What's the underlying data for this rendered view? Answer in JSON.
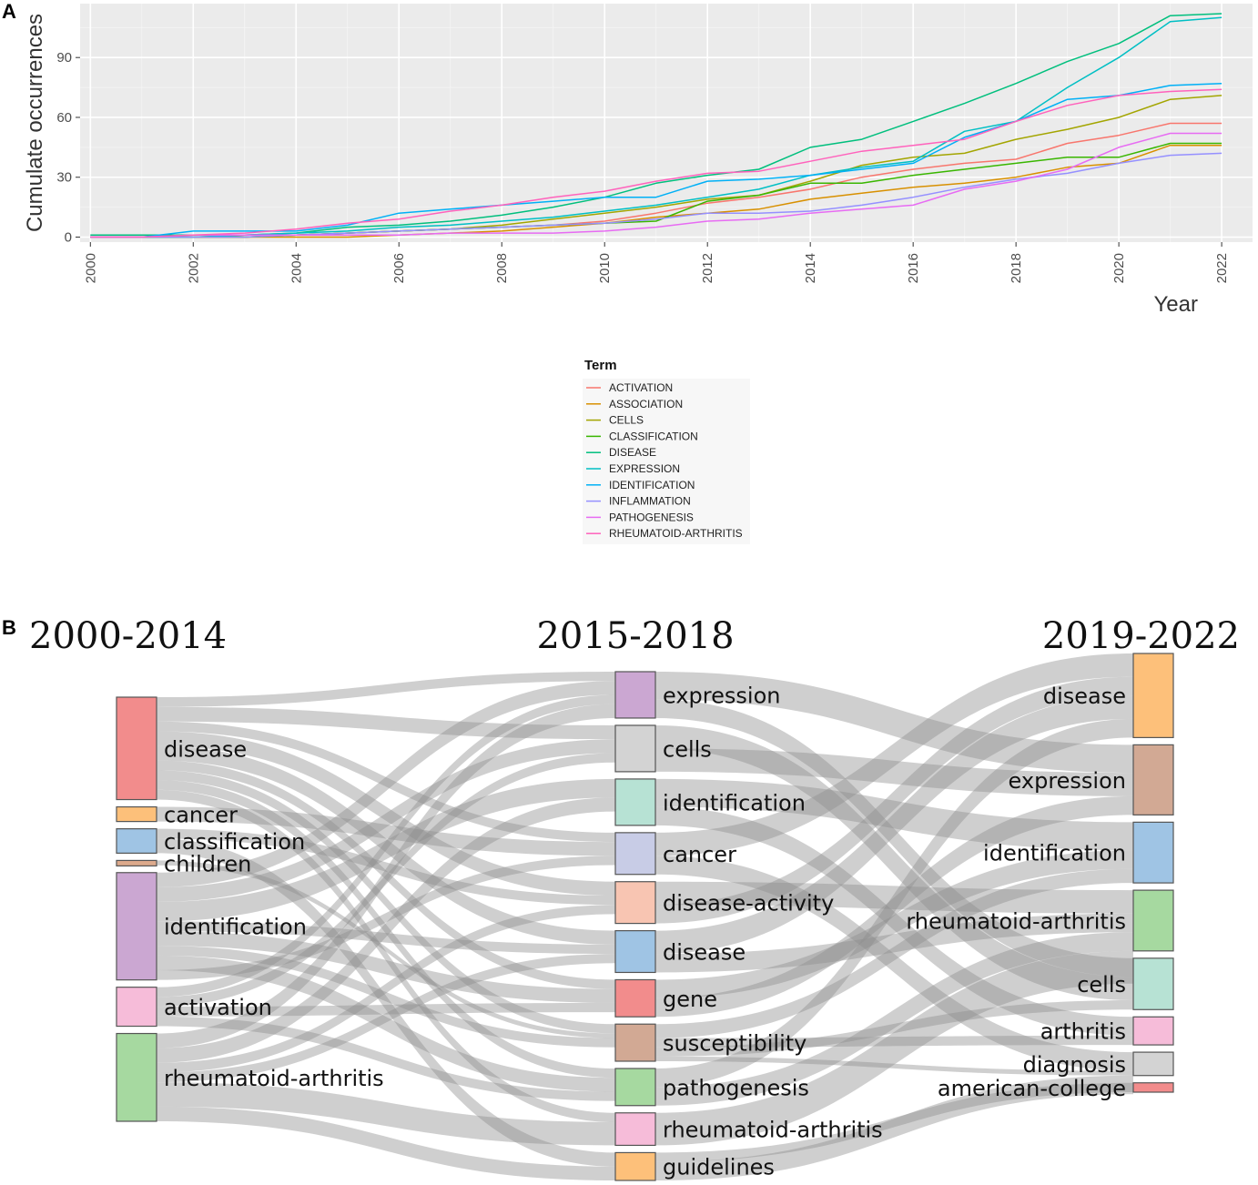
{
  "chart_data": [
    {
      "type": "line",
      "panel_label": "A",
      "title": "",
      "xlabel": "Year",
      "ylabel": "Cumulate occurrences",
      "xlim": [
        1999.8,
        2022.6
      ],
      "ylim": [
        -2.5,
        117
      ],
      "x_ticks": [
        "2000",
        "2002",
        "2004",
        "2006",
        "2008",
        "2010",
        "2012",
        "2014",
        "2016",
        "2018",
        "2020",
        "2022"
      ],
      "y_ticks": [
        "0",
        "30",
        "60",
        "90"
      ],
      "grid": true,
      "legend": {
        "title": "Term",
        "position": "bottom"
      },
      "x": [
        2000,
        2001,
        2002,
        2003,
        2004,
        2005,
        2006,
        2007,
        2008,
        2009,
        2010,
        2011,
        2012,
        2013,
        2014,
        2015,
        2016,
        2017,
        2018,
        2019,
        2020,
        2021,
        2022
      ],
      "series": [
        {
          "name": "ACTIVATION",
          "color": "#F8766D",
          "values": [
            0,
            0,
            0,
            0,
            1,
            2,
            3,
            4,
            5,
            6,
            8,
            12,
            17,
            20,
            24,
            30,
            34,
            37,
            39,
            47,
            51,
            57,
            57
          ]
        },
        {
          "name": "ASSOCIATION",
          "color": "#D89000",
          "values": [
            0,
            0,
            0,
            0,
            0,
            0,
            1,
            2,
            3,
            5,
            7,
            10,
            12,
            14,
            19,
            22,
            25,
            27,
            30,
            35,
            37,
            46,
            46
          ]
        },
        {
          "name": "CELLS",
          "color": "#A3A500",
          "values": [
            0,
            0,
            0,
            1,
            1,
            2,
            3,
            4,
            6,
            9,
            12,
            15,
            19,
            21,
            28,
            36,
            40,
            42,
            49,
            54,
            60,
            69,
            71
          ]
        },
        {
          "name": "CLASSIFICATION",
          "color": "#39B600",
          "values": [
            0,
            0,
            0,
            0,
            1,
            2,
            3,
            4,
            5,
            6,
            7,
            8,
            18,
            21,
            27,
            27,
            31,
            34,
            37,
            40,
            40,
            47,
            47
          ]
        },
        {
          "name": "DISEASE",
          "color": "#00BF7D",
          "values": [
            1,
            1,
            1,
            1,
            2,
            5,
            6,
            8,
            11,
            15,
            20,
            27,
            31,
            34,
            45,
            49,
            58,
            67,
            77,
            88,
            97,
            111,
            112
          ]
        },
        {
          "name": "EXPRESSION",
          "color": "#00BFC4",
          "values": [
            0,
            0,
            0,
            1,
            2,
            3,
            5,
            6,
            8,
            10,
            13,
            16,
            20,
            24,
            31,
            35,
            38,
            53,
            58,
            75,
            90,
            108,
            110
          ]
        },
        {
          "name": "IDENTIFICATION",
          "color": "#00B0F6",
          "values": [
            0,
            0,
            3,
            3,
            3,
            6,
            12,
            14,
            16,
            18,
            20,
            20,
            28,
            29,
            31,
            34,
            37,
            50,
            58,
            69,
            71,
            76,
            77
          ]
        },
        {
          "name": "INFLAMMATION",
          "color": "#9590FF",
          "values": [
            0,
            0,
            0,
            0,
            1,
            2,
            3,
            4,
            5,
            6,
            7,
            9,
            12,
            12,
            13,
            16,
            20,
            25,
            29,
            32,
            37,
            41,
            42
          ]
        },
        {
          "name": "PATHOGENESIS",
          "color": "#E76BF3",
          "values": [
            0,
            0,
            1,
            1,
            1,
            1,
            1,
            2,
            2,
            2,
            3,
            5,
            8,
            9,
            12,
            14,
            16,
            24,
            28,
            34,
            45,
            52,
            52
          ]
        },
        {
          "name": "RHEUMATOID-ARTHRITIS",
          "color": "#FF62BC",
          "values": [
            0,
            0,
            1,
            2,
            4,
            7,
            9,
            13,
            16,
            20,
            23,
            28,
            32,
            33,
            38,
            43,
            46,
            49,
            58,
            66,
            71,
            73,
            74
          ]
        }
      ]
    },
    {
      "type": "sankey",
      "panel_label": "B",
      "title": "",
      "periods": [
        "2000-2014",
        "2015-2018",
        "2019-2022"
      ],
      "columns": [
        [
          {
            "label": "disease",
            "value": 21,
            "color": "#F28C8C"
          },
          {
            "label": "cancer",
            "value": 3,
            "color": "#FDC07A"
          },
          {
            "label": "classification",
            "value": 5,
            "color": "#9FC4E4"
          },
          {
            "label": "children",
            "value": 1,
            "color": "#DDAA8C"
          },
          {
            "label": "identification",
            "value": 22,
            "color": "#CBA7D2"
          },
          {
            "label": "activation",
            "value": 8,
            "color": "#F6BCD9"
          },
          {
            "label": "rheumatoid-arthritis",
            "value": 18,
            "color": "#A6D9A0"
          }
        ],
        [
          {
            "label": "expression",
            "value": 10,
            "color": "#CBA7D2"
          },
          {
            "label": "cells",
            "value": 10,
            "color": "#D3D3D3"
          },
          {
            "label": "identification",
            "value": 10,
            "color": "#B7E2D4"
          },
          {
            "label": "cancer",
            "value": 9,
            "color": "#C8CCE6"
          },
          {
            "label": "disease-activity",
            "value": 9,
            "color": "#F8C5B2"
          },
          {
            "label": "disease",
            "value": 9,
            "color": "#9FC4E4"
          },
          {
            "label": "gene",
            "value": 8,
            "color": "#F28C8C"
          },
          {
            "label": "susceptibility",
            "value": 8,
            "color": "#D2A994"
          },
          {
            "label": "pathogenesis",
            "value": 8,
            "color": "#A6D9A0"
          },
          {
            "label": "rheumatoid-arthritis",
            "value": 7,
            "color": "#F6BCD9"
          },
          {
            "label": "guidelines",
            "value": 6,
            "color": "#FDC07A"
          }
        ],
        [
          {
            "label": "disease",
            "value": 18,
            "color": "#FDC07A"
          },
          {
            "label": "expression",
            "value": 15,
            "color": "#D2A994"
          },
          {
            "label": "identification",
            "value": 13,
            "color": "#9FC4E4"
          },
          {
            "label": "rheumatoid-arthritis",
            "value": 13,
            "color": "#A6D9A0"
          },
          {
            "label": "cells",
            "value": 11,
            "color": "#B7E2D4"
          },
          {
            "label": "arthritis",
            "value": 6,
            "color": "#F6BCD9"
          },
          {
            "label": "diagnosis",
            "value": 5,
            "color": "#D3D3D3"
          },
          {
            "label": "american-college",
            "value": 2,
            "color": "#F28C8C"
          }
        ]
      ],
      "links": [
        {
          "from": [
            0,
            0
          ],
          "to": [
            1,
            0
          ],
          "value": 2
        },
        {
          "from": [
            0,
            0
          ],
          "to": [
            1,
            1
          ],
          "value": 3
        },
        {
          "from": [
            0,
            0
          ],
          "to": [
            1,
            3
          ],
          "value": 2
        },
        {
          "from": [
            0,
            0
          ],
          "to": [
            1,
            4
          ],
          "value": 3
        },
        {
          "from": [
            0,
            0
          ],
          "to": [
            1,
            5
          ],
          "value": 3
        },
        {
          "from": [
            0,
            0
          ],
          "to": [
            1,
            6
          ],
          "value": 2
        },
        {
          "from": [
            0,
            0
          ],
          "to": [
            1,
            7
          ],
          "value": 2
        },
        {
          "from": [
            0,
            0
          ],
          "to": [
            1,
            8
          ],
          "value": 2
        },
        {
          "from": [
            0,
            0
          ],
          "to": [
            1,
            9
          ],
          "value": 2
        },
        {
          "from": [
            0,
            1
          ],
          "to": [
            1,
            3
          ],
          "value": 3
        },
        {
          "from": [
            0,
            2
          ],
          "to": [
            1,
            4
          ],
          "value": 2
        },
        {
          "from": [
            0,
            2
          ],
          "to": [
            1,
            10
          ],
          "value": 3
        },
        {
          "from": [
            0,
            3
          ],
          "to": [
            1,
            7
          ],
          "value": 1
        },
        {
          "from": [
            0,
            4
          ],
          "to": [
            1,
            0
          ],
          "value": 3
        },
        {
          "from": [
            0,
            4
          ],
          "to": [
            1,
            1
          ],
          "value": 3
        },
        {
          "from": [
            0,
            4
          ],
          "to": [
            1,
            2
          ],
          "value": 4
        },
        {
          "from": [
            0,
            4
          ],
          "to": [
            1,
            5
          ],
          "value": 2
        },
        {
          "from": [
            0,
            4
          ],
          "to": [
            1,
            6
          ],
          "value": 3
        },
        {
          "from": [
            0,
            4
          ],
          "to": [
            1,
            7
          ],
          "value": 2
        },
        {
          "from": [
            0,
            4
          ],
          "to": [
            1,
            8
          ],
          "value": 3
        },
        {
          "from": [
            0,
            4
          ],
          "to": [
            1,
            3
          ],
          "value": 2
        },
        {
          "from": [
            0,
            5
          ],
          "to": [
            1,
            0
          ],
          "value": 2
        },
        {
          "from": [
            0,
            5
          ],
          "to": [
            1,
            1
          ],
          "value": 2
        },
        {
          "from": [
            0,
            5
          ],
          "to": [
            1,
            6
          ],
          "value": 2
        },
        {
          "from": [
            0,
            5
          ],
          "to": [
            1,
            8
          ],
          "value": 2
        },
        {
          "from": [
            0,
            6
          ],
          "to": [
            1,
            0
          ],
          "value": 3
        },
        {
          "from": [
            0,
            6
          ],
          "to": [
            1,
            2
          ],
          "value": 3
        },
        {
          "from": [
            0,
            6
          ],
          "to": [
            1,
            4
          ],
          "value": 2
        },
        {
          "from": [
            0,
            6
          ],
          "to": [
            1,
            5
          ],
          "value": 2
        },
        {
          "from": [
            0,
            6
          ],
          "to": [
            1,
            9
          ],
          "value": 5
        },
        {
          "from": [
            0,
            6
          ],
          "to": [
            1,
            10
          ],
          "value": 3
        },
        {
          "from": [
            1,
            0
          ],
          "to": [
            2,
            1
          ],
          "value": 6
        },
        {
          "from": [
            1,
            0
          ],
          "to": [
            2,
            4
          ],
          "value": 4
        },
        {
          "from": [
            1,
            1
          ],
          "to": [
            2,
            4
          ],
          "value": 5
        },
        {
          "from": [
            1,
            1
          ],
          "to": [
            2,
            1
          ],
          "value": 5
        },
        {
          "from": [
            1,
            2
          ],
          "to": [
            2,
            2
          ],
          "value": 6
        },
        {
          "from": [
            1,
            2
          ],
          "to": [
            2,
            5
          ],
          "value": 4
        },
        {
          "from": [
            1,
            3
          ],
          "to": [
            2,
            0
          ],
          "value": 5
        },
        {
          "from": [
            1,
            3
          ],
          "to": [
            2,
            6
          ],
          "value": 4
        },
        {
          "from": [
            1,
            4
          ],
          "to": [
            2,
            3
          ],
          "value": 5
        },
        {
          "from": [
            1,
            4
          ],
          "to": [
            2,
            0
          ],
          "value": 4
        },
        {
          "from": [
            1,
            5
          ],
          "to": [
            2,
            0
          ],
          "value": 5
        },
        {
          "from": [
            1,
            5
          ],
          "to": [
            2,
            3
          ],
          "value": 4
        },
        {
          "from": [
            1,
            6
          ],
          "to": [
            2,
            2
          ],
          "value": 4
        },
        {
          "from": [
            1,
            6
          ],
          "to": [
            2,
            1
          ],
          "value": 4
        },
        {
          "from": [
            1,
            7
          ],
          "to": [
            2,
            2
          ],
          "value": 3
        },
        {
          "from": [
            1,
            7
          ],
          "to": [
            2,
            5
          ],
          "value": 2
        },
        {
          "from": [
            1,
            7
          ],
          "to": [
            2,
            4
          ],
          "value": 2
        },
        {
          "from": [
            1,
            7
          ],
          "to": [
            2,
            6
          ],
          "value": 1
        },
        {
          "from": [
            1,
            8
          ],
          "to": [
            2,
            0
          ],
          "value": 4
        },
        {
          "from": [
            1,
            8
          ],
          "to": [
            2,
            3
          ],
          "value": 4
        },
        {
          "from": [
            1,
            9
          ],
          "to": [
            2,
            3
          ],
          "value": 7
        },
        {
          "from": [
            1,
            10
          ],
          "to": [
            2,
            7
          ],
          "value": 2
        },
        {
          "from": [
            1,
            10
          ],
          "to": [
            2,
            6
          ],
          "value": 4
        }
      ]
    }
  ]
}
